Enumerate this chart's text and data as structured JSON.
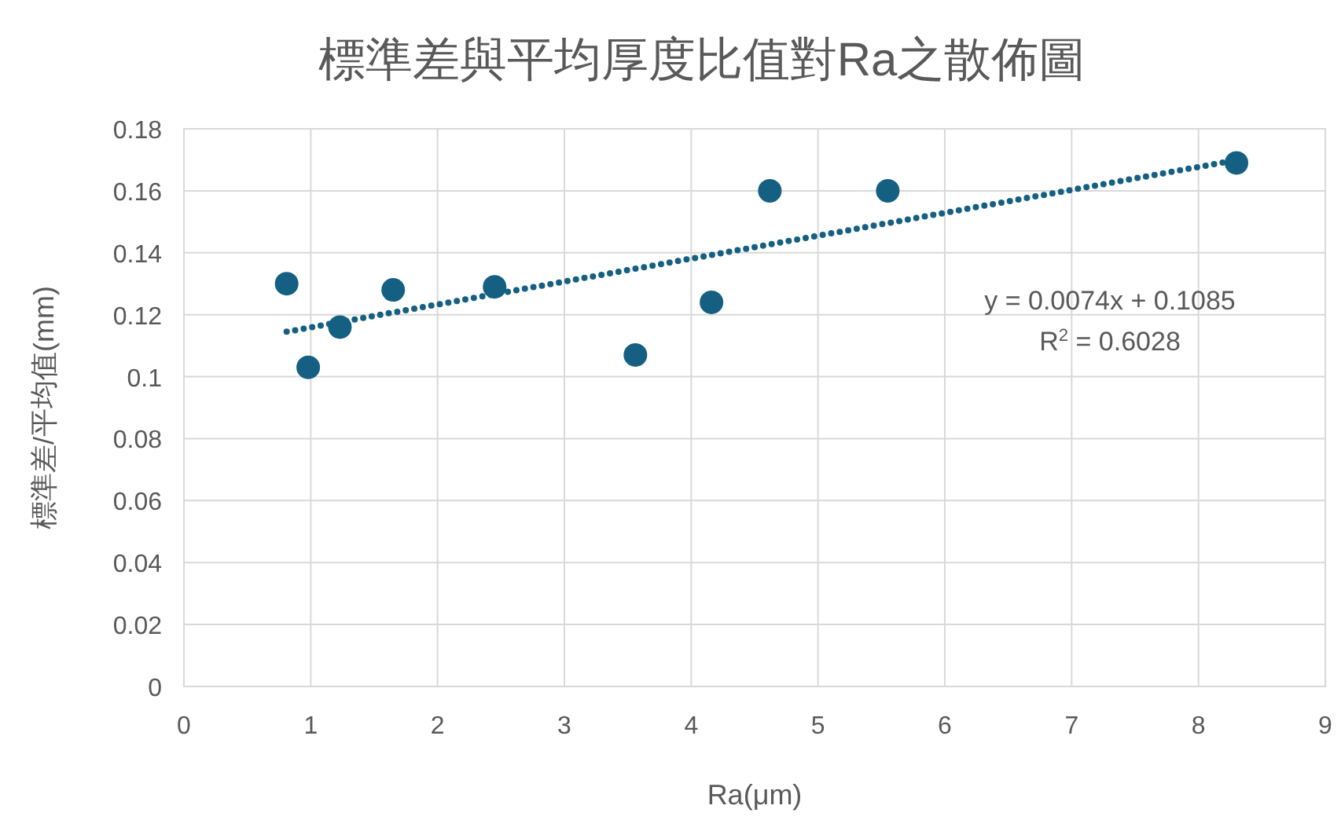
{
  "chart_data": {
    "type": "scatter",
    "title": "標準差與平均厚度比值對Ra之散佈圖",
    "xlabel": "Ra(μm)",
    "ylabel": "標準差/平均值(mm)",
    "xlim": [
      0,
      9
    ],
    "xticks": [
      0,
      1,
      2,
      3,
      4,
      5,
      6,
      7,
      8,
      9
    ],
    "ylim": [
      0,
      0.18
    ],
    "yticks": [
      0,
      0.02,
      0.04,
      0.06,
      0.08,
      0.1,
      0.12,
      0.14,
      0.16,
      0.18
    ],
    "grid": true,
    "marker": "circle",
    "series": [
      {
        "color": "#156082",
        "x": [
          0.81,
          0.98,
          1.23,
          1.65,
          2.45,
          3.56,
          4.16,
          4.62,
          5.55,
          8.3
        ],
        "values": [
          0.13,
          0.103,
          0.116,
          0.128,
          0.129,
          0.107,
          0.124,
          0.16,
          0.16,
          0.169
        ]
      },
      {
        "type": "line",
        "color": "#156082",
        "line_style": "dotted",
        "marker": "none",
        "x": [
          0.81,
          8.3
        ],
        "values": [
          0.1145,
          0.1699
        ]
      }
    ],
    "annotations": [
      "y = 0.0074x + 0.1085",
      "R$^{2}$ = 0.6028"
    ]
  }
}
